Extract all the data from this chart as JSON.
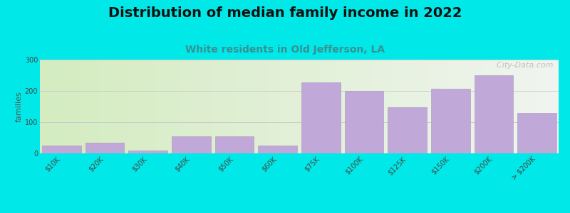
{
  "title": "Distribution of median family income in 2022",
  "subtitle": "White residents in Old Jefferson, LA",
  "ylabel": "families",
  "categories": [
    "$10K",
    "$20K",
    "$30K",
    "$40K",
    "$50K",
    "$60K",
    "$75K",
    "$100K",
    "$125K",
    "$150K",
    "$200K",
    "> $200K"
  ],
  "values": [
    25,
    35,
    10,
    55,
    55,
    25,
    228,
    200,
    148,
    207,
    250,
    130
  ],
  "bar_color": "#c0a8d8",
  "bar_edge_color": "#b090c0",
  "background_color": "#00e8e8",
  "plot_bg_color_left": "#d4ecc0",
  "plot_bg_color_right": "#f0f5f0",
  "plot_bg_color_far_right": "#e8f0e0",
  "ylim": [
    0,
    300
  ],
  "yticks": [
    0,
    100,
    200,
    300
  ],
  "title_fontsize": 14,
  "subtitle_fontsize": 10,
  "ylabel_fontsize": 8,
  "tick_fontsize": 7,
  "watermark": "  City-Data.com"
}
